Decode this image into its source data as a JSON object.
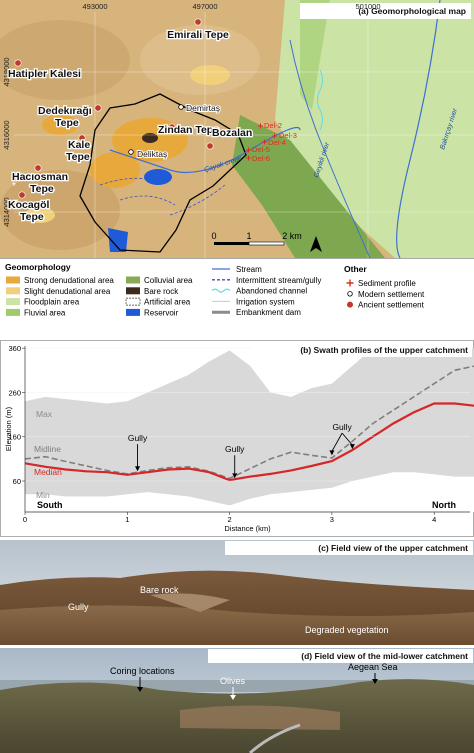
{
  "map": {
    "title": "(a) Geomorphological map",
    "eastings": [
      "493000",
      "497000",
      "501000"
    ],
    "northings": [
      "4318000",
      "4316000",
      "4314000"
    ],
    "places": [
      [
        "Emirali Tepe"
      ],
      [
        "Hatipler Kalesi"
      ],
      [
        "Dedekırağı",
        "Tepe"
      ],
      [
        "Kale",
        "Tepe"
      ],
      [
        "Zindan Tepe"
      ],
      [
        "Hacıosman",
        "Tepe"
      ],
      [
        "Kocagöl",
        "Tepe"
      ],
      [
        "Bozalan"
      ]
    ],
    "settlements": [
      "Demirtaş",
      "Deliktaş"
    ],
    "waterways": [
      "Çayak creek",
      "Geyikli river",
      "Bakırçay river"
    ],
    "profiles": [
      "Del-2",
      "Del-3",
      "Del-4",
      "Del-5",
      "Del-6"
    ],
    "scale": [
      "0",
      "1",
      "2 km"
    ],
    "marker": "*"
  },
  "legend": {
    "geomorphology": {
      "title": "Geomorphology",
      "items": [
        {
          "label": "Strong denudational area",
          "color": "#e8a93c"
        },
        {
          "label": "Slight denudational area",
          "color": "#f1d07c"
        },
        {
          "label": "Floodplain area",
          "color": "#cbe4a5"
        },
        {
          "label": "Fluvial area",
          "color": "#9fcb6b"
        },
        {
          "label": "Colluvial area",
          "color": "#86aa55"
        },
        {
          "label": "Bare rock",
          "color": "#3a2b1e"
        },
        {
          "label": "Artificial area",
          "color": "#ffffff"
        },
        {
          "label": "Reservoir",
          "color": "#1f5ad8"
        }
      ]
    },
    "lines": {
      "items": [
        {
          "label": "Stream",
          "color": "#3d6fd6"
        },
        {
          "label": "Intermittent stream/gully",
          "color": "#4450b8"
        },
        {
          "label": "Abandoned channel",
          "color": "#66dbe6"
        },
        {
          "label": "Irrigation system",
          "color": "#c9c9c9"
        },
        {
          "label": "Embankment dam",
          "color": "#8c8c8c"
        }
      ]
    },
    "other": {
      "title": "Other",
      "items": [
        {
          "label": "Sediment profile",
          "color": "#d7301f"
        },
        {
          "label": "Modern settlement",
          "color": "#ffffff"
        },
        {
          "label": "Ancient settlement",
          "color": "#c0392b"
        }
      ]
    }
  },
  "chart_data": {
    "type": "line",
    "title": "(b) Swath profiles of the upper catchment",
    "x_label": "Distance (km)",
    "y_label": "Elevation (m)",
    "x": [
      0,
      0.2,
      0.4,
      0.6,
      0.8,
      1.0,
      1.2,
      1.4,
      1.6,
      1.8,
      2.0,
      2.2,
      2.4,
      2.6,
      2.8,
      3.0,
      3.2,
      3.4,
      3.6,
      3.8,
      4.0,
      4.2,
      4.4
    ],
    "series": [
      {
        "name": "Max",
        "color": "#d9d9d9",
        "style": "area",
        "values": [
          240,
          250,
          245,
          240,
          235,
          240,
          260,
          280,
          300,
          330,
          355,
          320,
          260,
          250,
          270,
          280,
          320,
          360,
          360,
          360,
          360,
          360,
          360
        ]
      },
      {
        "name": "Min",
        "color": "#ffffff",
        "style": "area",
        "values": [
          30,
          30,
          25,
          25,
          25,
          30,
          35,
          30,
          25,
          15,
          5,
          20,
          30,
          35,
          40,
          45,
          60,
          70,
          80,
          80,
          75,
          70,
          70
        ]
      },
      {
        "name": "Midline",
        "color": "#7f7f7f",
        "style": "dashed",
        "values": [
          110,
          115,
          104,
          94,
          84,
          76,
          84,
          90,
          92,
          82,
          66,
          88,
          110,
          125,
          118,
          112,
          150,
          190,
          220,
          250,
          280,
          310,
          320
        ]
      },
      {
        "name": "Median",
        "color": "#d62728",
        "style": "line",
        "values": [
          100,
          92,
          86,
          82,
          80,
          74,
          80,
          86,
          88,
          80,
          62,
          70,
          76,
          84,
          94,
          105,
          130,
          160,
          190,
          215,
          235,
          235,
          230
        ]
      }
    ],
    "xlim": [
      0,
      4.35
    ],
    "ylim": [
      -10,
      365
    ],
    "xticks": [
      0,
      1,
      2,
      3,
      4
    ],
    "yticks": [
      60,
      160,
      260,
      360
    ],
    "grid": true,
    "annotations": [
      "Gully",
      "Gully",
      "Gully"
    ],
    "ends": [
      "South",
      "North"
    ]
  },
  "photos": [
    {
      "title": "(c) Field view of the upper catchment",
      "labels": [
        "Bare rock",
        "Gully",
        "Degraded vegetation"
      ]
    },
    {
      "title": "(d) Field view of the mid-lower catchment",
      "labels": [
        "Coring locations",
        "Olives",
        "Aegean Sea"
      ]
    }
  ]
}
